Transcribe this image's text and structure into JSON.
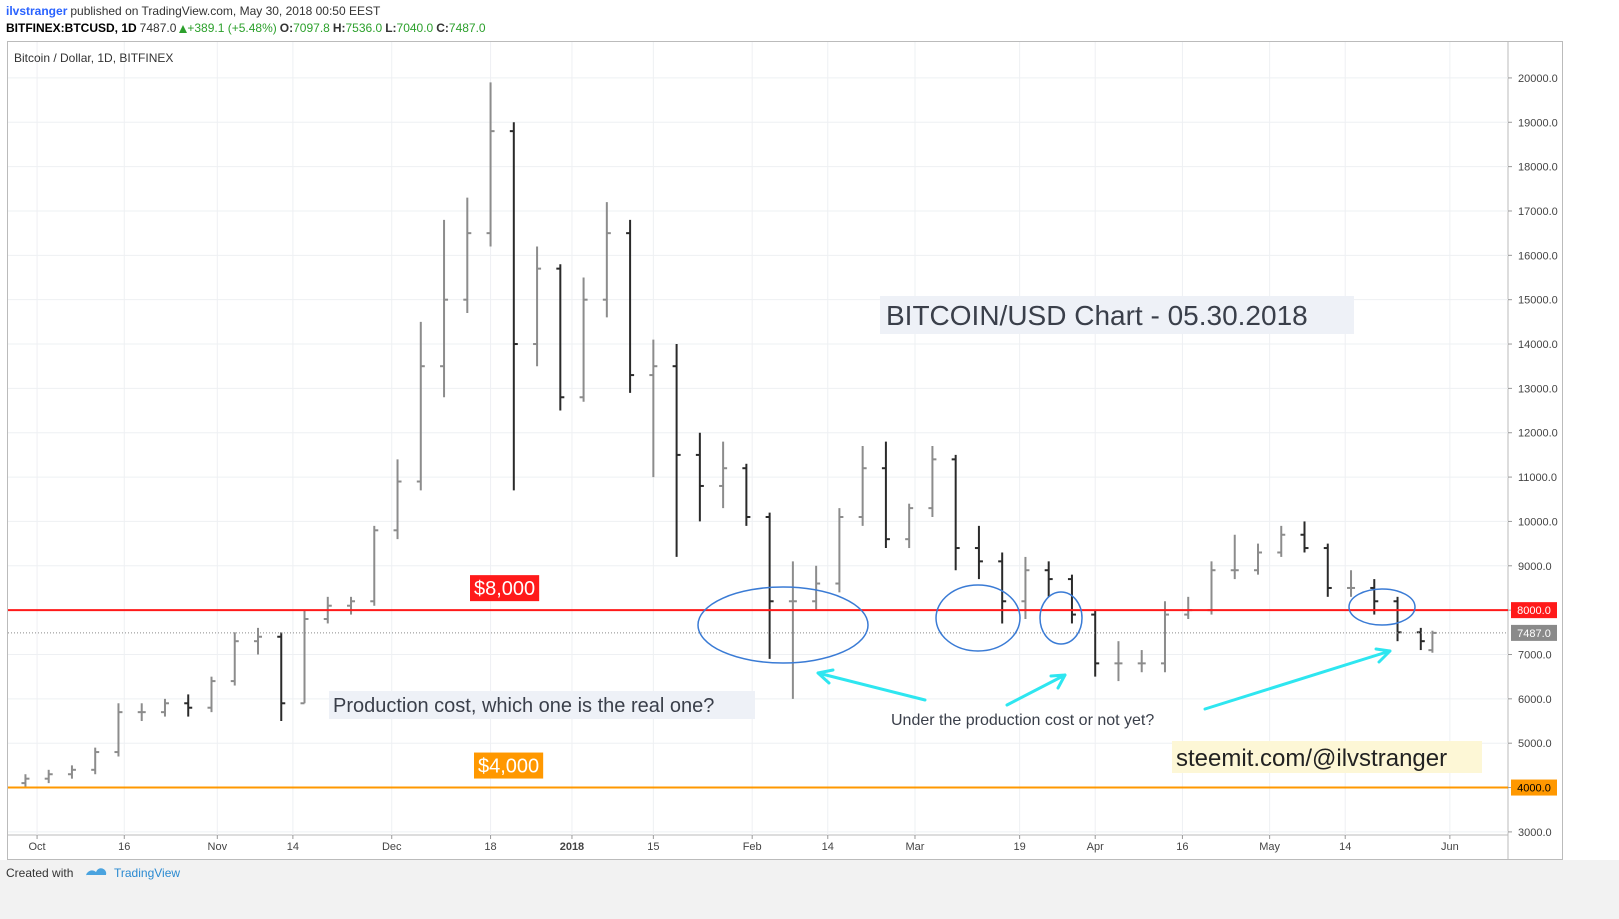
{
  "header": {
    "author": "ilvstranger",
    "published": "published on TradingView.com, May 30, 2018 00:50 EEST",
    "symbol": "BITFINEX:BTCUSD, 1D",
    "last": "7487.0",
    "change": "+389.1 (+5.48%)",
    "o_label": "O:",
    "o": "7097.8",
    "h_label": "H:",
    "h": "7536.0",
    "l_label": "L:",
    "l": "7040.0",
    "c_label": "C:",
    "c": "7487.0"
  },
  "footer": {
    "created": "Created with",
    "brand": "TradingView"
  },
  "chart_data": {
    "type": "ohlc",
    "title": "Bitcoin / Dollar, 1D, BITFINEX",
    "x": [
      "2017-09-29",
      "2017-10-03",
      "2017-10-07",
      "2017-10-11",
      "2017-10-15",
      "2017-10-19",
      "2017-10-23",
      "2017-10-27",
      "2017-10-31",
      "2017-11-04",
      "2017-11-08",
      "2017-11-12",
      "2017-11-16",
      "2017-11-20",
      "2017-11-24",
      "2017-11-28",
      "2017-12-02",
      "2017-12-06",
      "2017-12-10",
      "2017-12-14",
      "2017-12-18",
      "2017-12-22",
      "2017-12-26",
      "2017-12-30",
      "2018-01-03",
      "2018-01-07",
      "2018-01-11",
      "2018-01-15",
      "2018-01-19",
      "2018-01-23",
      "2018-01-27",
      "2018-01-31",
      "2018-02-04",
      "2018-02-08",
      "2018-02-12",
      "2018-02-16",
      "2018-02-20",
      "2018-02-24",
      "2018-02-28",
      "2018-03-04",
      "2018-03-08",
      "2018-03-12",
      "2018-03-16",
      "2018-03-20",
      "2018-03-24",
      "2018-03-28",
      "2018-04-01",
      "2018-04-05",
      "2018-04-09",
      "2018-04-13",
      "2018-04-17",
      "2018-04-21",
      "2018-04-25",
      "2018-04-29",
      "2018-05-03",
      "2018-05-07",
      "2018-05-11",
      "2018-05-15",
      "2018-05-19",
      "2018-05-23",
      "2018-05-27",
      "2018-05-29"
    ],
    "open": [
      4100,
      4200,
      4300,
      4400,
      4800,
      5700,
      5700,
      5900,
      5800,
      6400,
      7300,
      7400,
      5900,
      7800,
      8100,
      8200,
      9800,
      10900,
      13500,
      15000,
      16500,
      18800,
      14000,
      15700,
      12800,
      15000,
      16500,
      13300,
      13500,
      11500,
      10800,
      11200,
      10100,
      8200,
      8200,
      8600,
      10100,
      11200,
      9600,
      10300,
      11400,
      9400,
      9100,
      8200,
      8900,
      8700,
      7900,
      6800,
      6800,
      6800,
      7900,
      8000,
      8900,
      8900,
      9300,
      9700,
      9400,
      8500,
      8500,
      8200,
      7500,
      7097.8
    ],
    "high": [
      4300,
      4400,
      4500,
      4900,
      5900,
      5900,
      6000,
      6100,
      6500,
      7500,
      7600,
      7500,
      8000,
      8300,
      8300,
      9900,
      11400,
      14500,
      16800,
      17300,
      19900,
      19000,
      16200,
      15800,
      15500,
      17200,
      16800,
      14100,
      14000,
      12000,
      11800,
      11300,
      10200,
      9100,
      9000,
      10300,
      11700,
      11800,
      10400,
      11700,
      11500,
      9900,
      9300,
      9200,
      9100,
      8800,
      8000,
      7300,
      7100,
      8200,
      8300,
      9100,
      9700,
      9500,
      9900,
      10000,
      9500,
      8900,
      8700,
      8300,
      7600,
      7536
    ],
    "low": [
      4000,
      4100,
      4200,
      4300,
      4700,
      5500,
      5600,
      5600,
      5700,
      6300,
      7000,
      5500,
      5900,
      7700,
      7900,
      8100,
      9600,
      10700,
      12800,
      14700,
      16200,
      10700,
      13500,
      12500,
      12700,
      14600,
      12900,
      11000,
      9200,
      10000,
      10300,
      9900,
      6900,
      6000,
      8000,
      8400,
      9900,
      9400,
      9400,
      10100,
      8900,
      8700,
      7700,
      7800,
      8300,
      7700,
      6500,
      6400,
      6600,
      6600,
      7800,
      7900,
      8700,
      8800,
      9200,
      9300,
      8300,
      8300,
      7900,
      7300,
      7100,
      7040
    ],
    "close": [
      4200,
      4300,
      4400,
      4800,
      5700,
      5700,
      5900,
      5800,
      6400,
      7300,
      7400,
      5900,
      7800,
      8100,
      8200,
      9800,
      10900,
      13500,
      15000,
      16500,
      18800,
      14000,
      15700,
      12800,
      15000,
      16500,
      13300,
      13500,
      11500,
      10800,
      11200,
      10100,
      8200,
      8200,
      8600,
      10100,
      11200,
      9600,
      10300,
      11400,
      9400,
      9100,
      8200,
      8900,
      8700,
      7900,
      6800,
      6800,
      6800,
      7900,
      8000,
      8900,
      8900,
      9300,
      9700,
      9400,
      8500,
      8500,
      8200,
      7500,
      7300,
      7487
    ],
    "up_color": "#8c8c8c",
    "down_color": "#2a2a2a",
    "xlim": [
      "2017-09-26",
      "2018-06-11"
    ],
    "ylim": [
      2930,
      20810
    ],
    "xticks": [
      {
        "value": "2017-10-01",
        "label": "Oct"
      },
      {
        "value": "2017-10-16",
        "label": "16"
      },
      {
        "value": "2017-11-01",
        "label": "Nov"
      },
      {
        "value": "2017-11-14",
        "label": "14"
      },
      {
        "value": "2017-12-01",
        "label": "Dec"
      },
      {
        "value": "2017-12-18",
        "label": "18"
      },
      {
        "value": "2018-01-01",
        "label": "2018"
      },
      {
        "value": "2018-01-15",
        "label": "15"
      },
      {
        "value": "2018-02-01",
        "label": "Feb"
      },
      {
        "value": "2018-02-14",
        "label": "14"
      },
      {
        "value": "2018-03-01",
        "label": "Mar"
      },
      {
        "value": "2018-03-19",
        "label": "19"
      },
      {
        "value": "2018-04-01",
        "label": "Apr"
      },
      {
        "value": "2018-04-16",
        "label": "16"
      },
      {
        "value": "2018-05-01",
        "label": "May"
      },
      {
        "value": "2018-05-14",
        "label": "14"
      },
      {
        "value": "2018-06-01",
        "label": "Jun"
      }
    ],
    "yticks": [
      {
        "value": 3000,
        "label": "3000.0"
      },
      {
        "value": 4000,
        "label": "4000.0"
      },
      {
        "value": 5000,
        "label": "5000.0"
      },
      {
        "value": 6000,
        "label": "6000.0"
      },
      {
        "value": 7000,
        "label": "7000.0"
      },
      {
        "value": 8000,
        "label": "8000.0"
      },
      {
        "value": 9000,
        "label": "9000.0"
      },
      {
        "value": 10000,
        "label": "10000.0"
      },
      {
        "value": 11000,
        "label": "11000.0"
      },
      {
        "value": 12000,
        "label": "12000.0"
      },
      {
        "value": 13000,
        "label": "13000.0"
      },
      {
        "value": 14000,
        "label": "14000.0"
      },
      {
        "value": 15000,
        "label": "15000.0"
      },
      {
        "value": 16000,
        "label": "16000.0"
      },
      {
        "value": 17000,
        "label": "17000.0"
      },
      {
        "value": 18000,
        "label": "18000.0"
      },
      {
        "value": 19000,
        "label": "19000.0"
      },
      {
        "value": 20000,
        "label": "20000.0"
      }
    ],
    "grid": true,
    "hlines": [
      {
        "value": 8000,
        "label": "8000.0",
        "text": "$8,000",
        "color": "#ff1a1a"
      },
      {
        "value": 4000,
        "label": "4000.0",
        "text": "$4,000",
        "color": "#ff9800"
      }
    ],
    "last_price": {
      "value": 7487,
      "label": "7487.0",
      "color": "#8a8a8a"
    },
    "annotations": {
      "main": "BITCOIN/USD Chart - 05.30.2018",
      "production": "Production cost, which one is the real one?",
      "under": "Under the production cost or not yet?",
      "steemit": "steemit.com/@ilvstranger"
    }
  }
}
